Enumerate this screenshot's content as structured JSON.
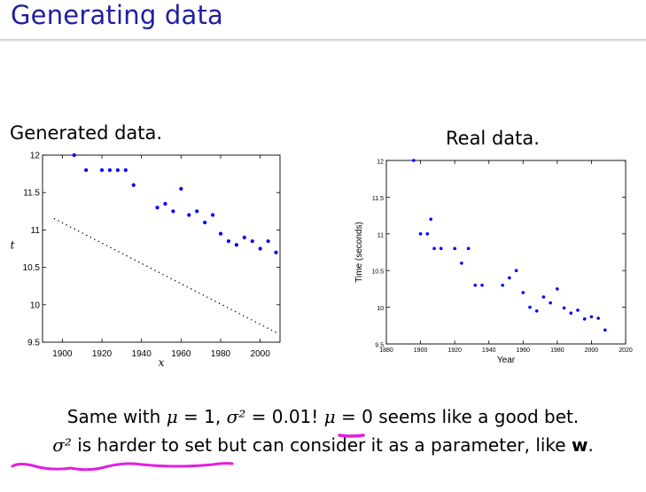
{
  "slide": {
    "title": "Generating data",
    "left_caption": "Generated data.",
    "right_caption": "Real data.",
    "line1": {
      "a": "Same with ",
      "mu": "μ",
      "b": " = 1, ",
      "sigma2": "σ²",
      "c": " = 0.01! ",
      "mu2": "μ",
      "d": " = 0 seems like a good bet."
    },
    "line2": {
      "sigma2": "σ²",
      "a": " is harder to set but can consider it as a parameter, like ",
      "w": "w",
      "end": "."
    },
    "annotation_color": "#e31ee0"
  },
  "chart_data": [
    {
      "type": "scatter",
      "title": "",
      "xlabel": "x",
      "ylabel": "t",
      "xlim": [
        1890,
        2010
      ],
      "ylim": [
        9.5,
        12
      ],
      "xticks": [
        1900,
        1920,
        1940,
        1960,
        1980,
        2000
      ],
      "yticks": [
        9.5,
        10,
        10.5,
        11,
        11.5,
        12
      ],
      "ytick_labels": [
        "9.5",
        "10",
        "10.5",
        "11",
        "11.5",
        "12"
      ],
      "series": [
        {
          "style": "dots",
          "x": [
            1906,
            1912,
            1920,
            1924,
            1928,
            1932,
            1936,
            1948,
            1952,
            1956,
            1960,
            1964,
            1968,
            1972,
            1976,
            1980,
            1984,
            1988,
            1992,
            1996,
            2000,
            2004,
            2008
          ],
          "y": [
            12.0,
            11.8,
            11.8,
            11.8,
            11.8,
            11.8,
            11.6,
            11.3,
            11.35,
            11.25,
            11.55,
            11.2,
            11.25,
            11.1,
            11.2,
            10.95,
            10.85,
            10.8,
            10.9,
            10.85,
            10.75,
            10.85,
            10.7
          ]
        },
        {
          "style": "dotted-line",
          "x": [
            1896,
            2008
          ],
          "y": [
            11.15,
            9.63
          ]
        }
      ]
    },
    {
      "type": "scatter",
      "title": "",
      "xlabel": "Year",
      "ylabel": "Time (seconds)",
      "xlim": [
        1880,
        2020
      ],
      "ylim": [
        9.5,
        12
      ],
      "xticks": [
        1880,
        1900,
        1920,
        1940,
        1960,
        1980,
        2000,
        2020
      ],
      "yticks": [
        9.5,
        10,
        10.5,
        11,
        11.5,
        12
      ],
      "ytick_labels": [
        "9.5",
        "10",
        "10.5",
        "11",
        "11.5",
        "12"
      ],
      "series": [
        {
          "style": "dots",
          "x": [
            1896,
            1900,
            1904,
            1906,
            1908,
            1912,
            1920,
            1924,
            1928,
            1932,
            1936,
            1948,
            1952,
            1956,
            1960,
            1964,
            1968,
            1972,
            1976,
            1980,
            1984,
            1988,
            1992,
            1996,
            2000,
            2004,
            2008
          ],
          "y": [
            12.0,
            11.0,
            11.0,
            11.2,
            10.8,
            10.8,
            10.8,
            10.6,
            10.8,
            10.3,
            10.3,
            10.3,
            10.4,
            10.5,
            10.2,
            10.0,
            9.95,
            10.14,
            10.06,
            10.25,
            9.99,
            9.92,
            9.96,
            9.84,
            9.87,
            9.85,
            9.69
          ]
        }
      ]
    }
  ]
}
